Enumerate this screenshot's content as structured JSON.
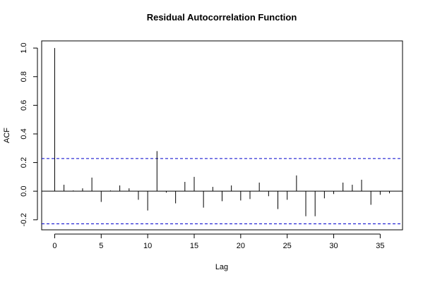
{
  "chart_data": {
    "type": "bar",
    "title": "Residual Autocorrelation Function",
    "xlabel": "Lag",
    "ylabel": "ACF",
    "xlim": [
      -1.4,
      37.4
    ],
    "ylim": [
      -0.27,
      1.05
    ],
    "xticks": [
      0,
      5,
      10,
      15,
      20,
      25,
      30,
      35
    ],
    "yticks": [
      -0.2,
      0.0,
      0.2,
      0.4,
      0.6,
      0.8,
      1.0
    ],
    "ytick_labels": [
      "-0.2",
      "0.0",
      "0.2",
      "0.4",
      "0.6",
      "0.8",
      "1.0"
    ],
    "confidence_bounds": [
      0.228,
      -0.228
    ],
    "lags": [
      0,
      1,
      2,
      3,
      4,
      5,
      6,
      7,
      8,
      9,
      10,
      11,
      12,
      13,
      14,
      15,
      16,
      17,
      18,
      19,
      20,
      21,
      22,
      23,
      24,
      25,
      26,
      27,
      28,
      29,
      30,
      31,
      32,
      33,
      34,
      35,
      36
    ],
    "values": [
      1.0,
      0.045,
      0.005,
      0.02,
      0.095,
      -0.075,
      0.005,
      0.04,
      0.02,
      -0.06,
      -0.135,
      0.28,
      -0.01,
      -0.085,
      0.065,
      0.1,
      -0.115,
      0.03,
      -0.07,
      0.04,
      -0.065,
      -0.055,
      0.06,
      -0.035,
      -0.125,
      -0.06,
      0.11,
      -0.175,
      -0.175,
      -0.05,
      -0.02,
      0.06,
      0.045,
      0.08,
      -0.095,
      -0.025,
      -0.015
    ],
    "colors": {
      "bars": "#000000",
      "bounds": "#0000cc",
      "axes": "#000000"
    }
  }
}
